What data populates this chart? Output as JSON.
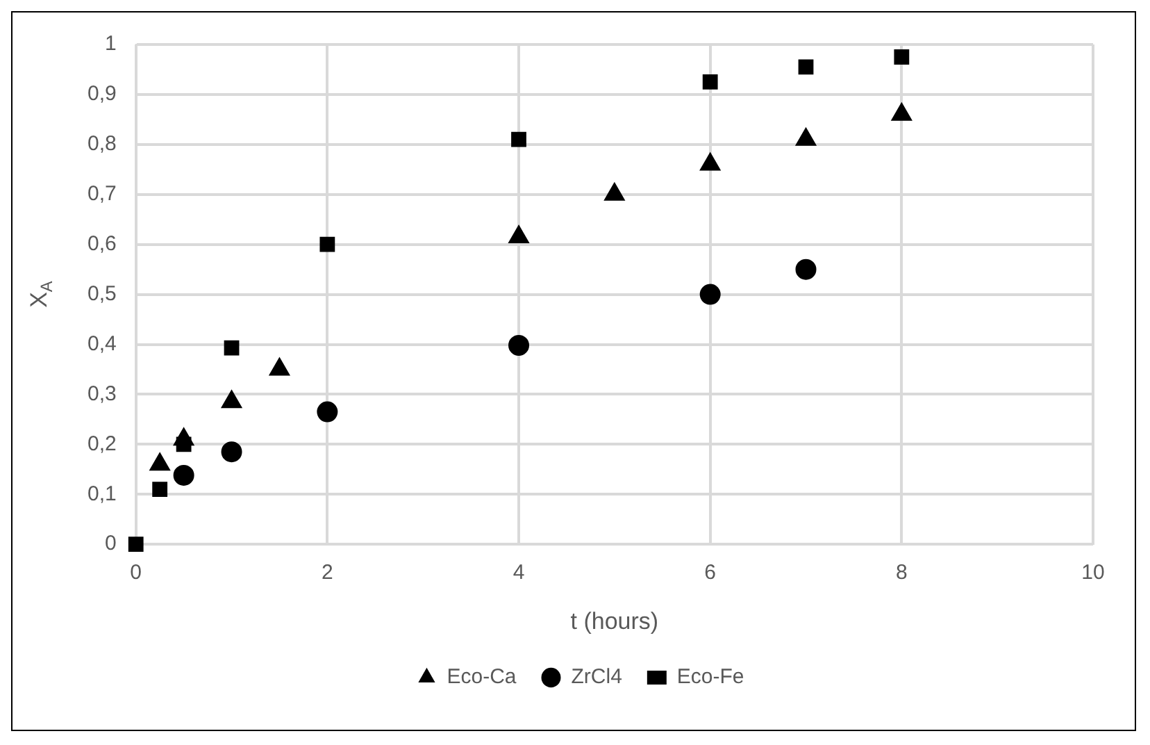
{
  "chart_data": {
    "type": "scatter",
    "xlabel": "t (hours)",
    "ylabel": "X$_{A}$",
    "xlim": [
      0,
      10
    ],
    "xticks": [
      0,
      2,
      4,
      6,
      8,
      10
    ],
    "ylim": [
      0,
      1
    ],
    "yticks": [
      0,
      {
        "value": 0.1,
        "label": "0,1"
      },
      {
        "value": 0.2,
        "label": "0,2"
      },
      {
        "value": 0.3,
        "label": "0,3"
      },
      {
        "value": 0.4,
        "label": "0,4"
      },
      {
        "value": 0.5,
        "label": "0,5"
      },
      {
        "value": 0.6,
        "label": "0,6"
      },
      {
        "value": 0.7,
        "label": "0,7"
      },
      {
        "value": 0.8,
        "label": "0,8"
      },
      {
        "value": 0.9,
        "label": "0,9"
      },
      1
    ],
    "grid": true,
    "legend": "bottom",
    "series": [
      {
        "name": "Eco-Ca",
        "color": "#000000",
        "marker": "triangle",
        "x": [
          0.25,
          0.5,
          1,
          1.5,
          4,
          5,
          6,
          7,
          8
        ],
        "values": [
          0.16,
          0.21,
          0.285,
          0.35,
          0.615,
          0.7,
          0.76,
          0.81,
          0.86
        ]
      },
      {
        "name": "ZrCl4",
        "color": "#000000",
        "marker": "circle",
        "x": [
          0.5,
          1,
          2,
          4,
          6,
          7
        ],
        "values": [
          0.138,
          0.185,
          0.265,
          0.398,
          0.5,
          0.55
        ]
      },
      {
        "name": "Eco-Fe",
        "color": "#000000",
        "marker": "square",
        "x": [
          0,
          0.25,
          0.5,
          1,
          2,
          4,
          6,
          7,
          8
        ],
        "values": [
          0,
          0.11,
          0.2,
          0.393,
          0.6,
          0.81,
          0.925,
          0.955,
          0.975
        ]
      }
    ]
  }
}
